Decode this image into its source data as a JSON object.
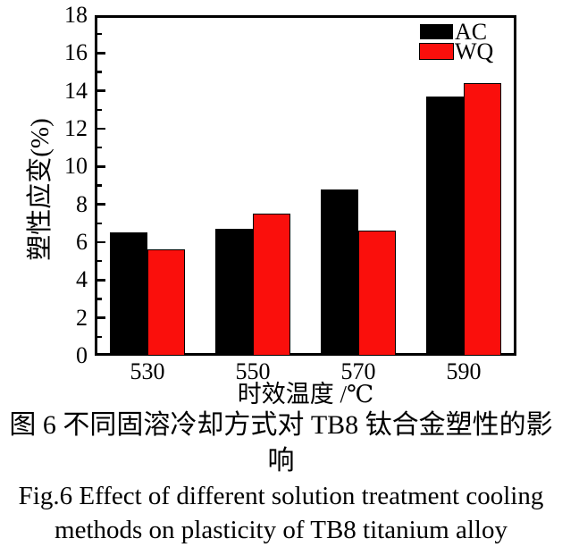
{
  "figure": {
    "caption_zh": "图 6  不同固溶冷却方式对 TB8 钛合金塑性的影响",
    "caption_en_line1": "Fig.6  Effect of different solution treatment cooling",
    "caption_en_line2": "methods on plasticity of TB8 titanium alloy"
  },
  "chart_data": {
    "type": "bar",
    "title": "",
    "categories": [
      "530",
      "550",
      "570",
      "590"
    ],
    "series": [
      {
        "name": "AC",
        "color": "#000000",
        "values": [
          6.5,
          6.7,
          8.8,
          13.7
        ]
      },
      {
        "name": "WQ",
        "color": "#fa0f0c",
        "values": [
          5.6,
          7.5,
          6.6,
          14.4
        ]
      }
    ],
    "xlabel": "时效温度 /℃",
    "ylabel": "塑性应变(%)",
    "ylim": [
      0,
      18
    ],
    "ytick_step": 2,
    "yminor_step": 1,
    "ytick_labels": [
      "0",
      "2",
      "4",
      "6",
      "8",
      "10",
      "12",
      "14",
      "16",
      "18"
    ],
    "legend_position": "top-right-inside",
    "grid": false,
    "frame": true
  }
}
